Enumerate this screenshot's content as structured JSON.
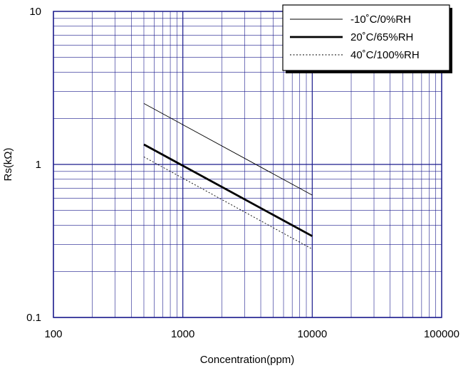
{
  "chart_data": {
    "type": "line",
    "xlabel": "Concentration(ppm)",
    "ylabel": "Rs(kΩ)",
    "xscale": "log",
    "yscale": "log",
    "xlim": [
      100,
      100000
    ],
    "ylim": [
      0.1,
      10
    ],
    "x_tick_labels": [
      "100",
      "1000",
      "10000",
      "100000"
    ],
    "y_tick_labels": [
      "0.1",
      "1",
      "10"
    ],
    "grid": true,
    "legend_position": "top-right",
    "series": [
      {
        "name": "-10˚C/0%RH",
        "style": "thin-solid",
        "x": [
          500,
          10000
        ],
        "y": [
          2.5,
          0.63
        ]
      },
      {
        "name": "20˚C/65%RH",
        "style": "thick-solid",
        "x": [
          500,
          10000
        ],
        "y": [
          1.35,
          0.34
        ]
      },
      {
        "name": "40˚C/100%RH",
        "style": "dotted",
        "x": [
          500,
          10000
        ],
        "y": [
          1.12,
          0.28
        ]
      }
    ],
    "colors": {
      "grid": "#1a1a8c",
      "line": "#000000",
      "frame": "#000000"
    }
  }
}
